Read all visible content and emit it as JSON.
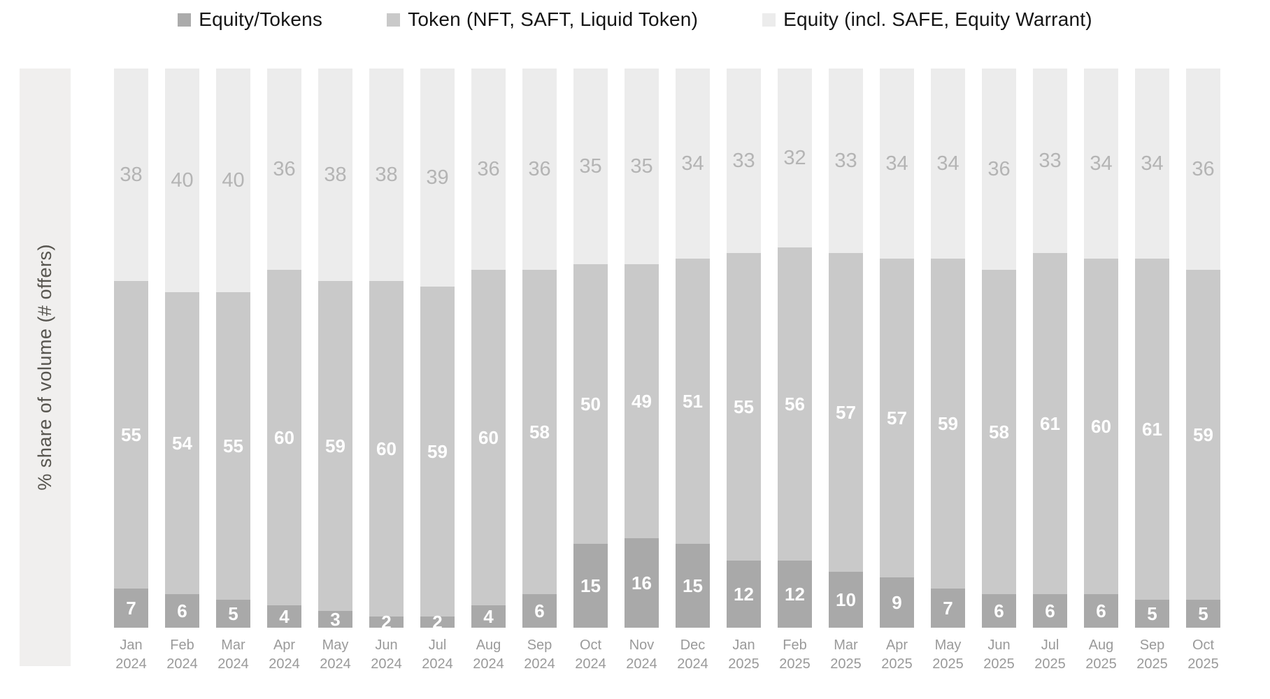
{
  "legend": {
    "items": [
      {
        "label": "Equity/Tokens",
        "color": "#ababab"
      },
      {
        "label": "Token (NFT, SAFT, Liquid Token)",
        "color": "#c9c9c9"
      },
      {
        "label": "Equity (incl. SAFE, Equity Warrant)",
        "color": "#ececec"
      }
    ]
  },
  "y_axis": {
    "label": "% share of volume (# offers)"
  },
  "chart_data": {
    "type": "bar",
    "stacked": true,
    "unit": "percent of total",
    "title": "",
    "xlabel": "",
    "ylabel": "% share of volume (# offers)",
    "ylim": [
      0,
      100
    ],
    "grid": false,
    "legend_position": "top",
    "categories": [
      {
        "month": "Jan",
        "year": "2024"
      },
      {
        "month": "Feb",
        "year": "2024"
      },
      {
        "month": "Mar",
        "year": "2024"
      },
      {
        "month": "Apr",
        "year": "2024"
      },
      {
        "month": "May",
        "year": "2024"
      },
      {
        "month": "Jun",
        "year": "2024"
      },
      {
        "month": "Jul",
        "year": "2024"
      },
      {
        "month": "Aug",
        "year": "2024"
      },
      {
        "month": "Sep",
        "year": "2024"
      },
      {
        "month": "Oct",
        "year": "2024"
      },
      {
        "month": "Nov",
        "year": "2024"
      },
      {
        "month": "Dec",
        "year": "2024"
      },
      {
        "month": "Jan",
        "year": "2025"
      },
      {
        "month": "Feb",
        "year": "2025"
      },
      {
        "month": "Mar",
        "year": "2025"
      },
      {
        "month": "Apr",
        "year": "2025"
      },
      {
        "month": "May",
        "year": "2025"
      },
      {
        "month": "Jun",
        "year": "2025"
      },
      {
        "month": "Jul",
        "year": "2025"
      },
      {
        "month": "Aug",
        "year": "2025"
      },
      {
        "month": "Sep",
        "year": "2025"
      },
      {
        "month": "Oct",
        "year": "2025"
      }
    ],
    "series": [
      {
        "name": "Equity/Tokens",
        "stack_order": "bottom",
        "color": "#a9a9a9",
        "label_color": "#ffffff",
        "values": [
          7,
          6,
          5,
          4,
          3,
          2,
          2,
          4,
          6,
          15,
          16,
          15,
          12,
          12,
          10,
          9,
          7,
          6,
          6,
          6,
          5,
          5
        ]
      },
      {
        "name": "Token (NFT, SAFT, Liquid Token)",
        "stack_order": "middle",
        "color": "#c9c9c9",
        "label_color": "#ffffff",
        "values": [
          55,
          54,
          55,
          60,
          59,
          60,
          59,
          60,
          58,
          50,
          49,
          51,
          55,
          56,
          57,
          57,
          59,
          58,
          61,
          60,
          61,
          59
        ]
      },
      {
        "name": "Equity (incl. SAFE, Equity Warrant)",
        "stack_order": "top",
        "color": "#ececec",
        "label_color": "#b4b4b4",
        "values": [
          38,
          40,
          40,
          36,
          38,
          38,
          39,
          36,
          36,
          35,
          35,
          34,
          33,
          32,
          33,
          34,
          34,
          36,
          33,
          34,
          34,
          36
        ]
      }
    ]
  }
}
